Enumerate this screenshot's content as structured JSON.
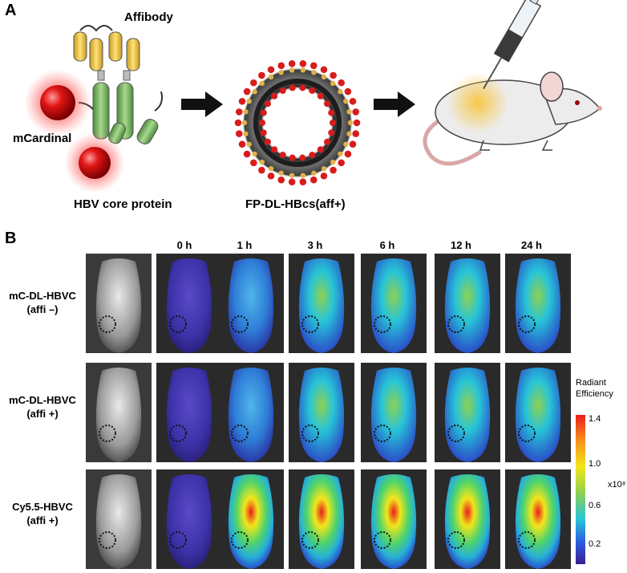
{
  "panel_a": {
    "letter": "A",
    "labels": {
      "affibody": "Affibody",
      "mcardinal": "mCardinal",
      "hbv_core": "HBV core protein",
      "nanocage": "FP-DL-HBcs(aff+)"
    }
  },
  "panel_b": {
    "letter": "B",
    "time_points": [
      "0 h",
      "1 h",
      "3 h",
      "6 h",
      "12 h",
      "24 h"
    ],
    "rows": [
      {
        "line1": "mC-DL-HBVC",
        "line2": "(affi –)"
      },
      {
        "line1": "mC-DL-HBVC",
        "line2": "(affi +)"
      },
      {
        "line1": "Cy5.5-HBVC",
        "line2": "(affi +)"
      }
    ],
    "colorbar": {
      "title_line1": "Radiant",
      "title_line2": "Efficiency",
      "ticks": [
        "1.4",
        "1.0",
        "0.6",
        "0.2"
      ],
      "unit": "x10⁸"
    }
  },
  "colors": {
    "affibody_helix": "#f0c84a",
    "core_helix": "#7db36a",
    "fluor_sphere": "#d81c1c",
    "glow": "#ff3b3b",
    "arrow": "#111111"
  }
}
